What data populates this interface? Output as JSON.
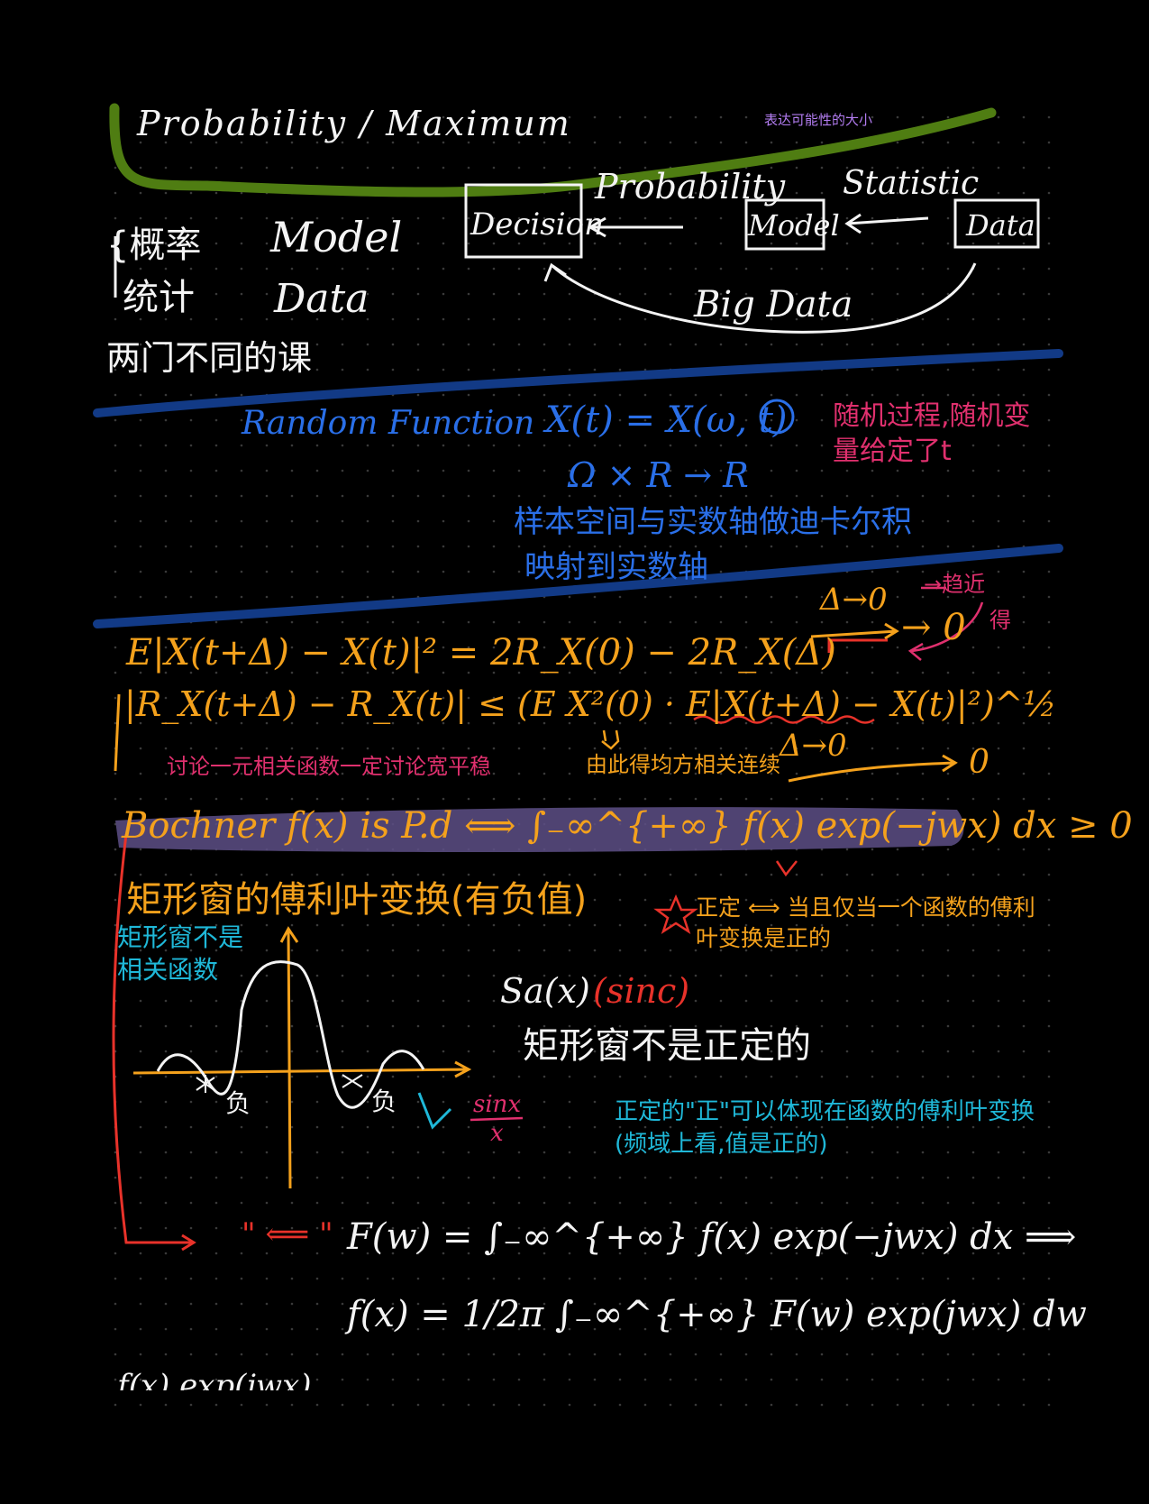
{
  "colors": {
    "background": "#000000",
    "dot_grid": "#3a3a3a",
    "white_ink": "#f4f4f4",
    "green_ink": "#4f7d12",
    "navy_ink": "#123a86",
    "blue_ink": "#2a6fe8",
    "magenta_ink": "#e0306e",
    "orange_ink": "#f4a11c",
    "cyan_ink": "#1fb8d8",
    "red_ink": "#e8322a",
    "violet_ink": "#b27cf0",
    "highlight": "#5d4f86"
  },
  "header": {
    "title_cut": "Probability / Maximum",
    "small_note": "表达可能性的大小"
  },
  "flow_diagram": {
    "left_note_line1": "{概率",
    "left_note_word1": "Model",
    "left_note_line2": "统计",
    "left_note_word2": "Data",
    "left_note_line3": "两门不同的课",
    "box_decision": "Decision",
    "box_model": "Model",
    "box_data": "Data",
    "label_probability": "Probability",
    "label_statistic": "Statistic",
    "label_big_data": "Big Data"
  },
  "random_function": {
    "title": "Random Function",
    "definition": "X(t) = X(ω, t)",
    "mapping": "Ω × R → R",
    "note_magenta": "随机过程,随机变量给定了t",
    "note_blue_1": "样本空间与实数轴做迪卡尔积",
    "note_blue_2": "映射到实数轴"
  },
  "continuity": {
    "eq1": "E|X(t+Δ) − X(t)|² = 2R_X(0) − 2R_X(Δ)",
    "arrow_label": "Δ→0",
    "arrow_result": "→ 0",
    "right_note": "→趋近",
    "right_note_2": "得",
    "eq2": "|R_X(t+Δ) − R_X(t)| ≤ (E X²(0) · E|X(t+Δ) − X(t)|²)^½",
    "note_orange_1": "讨论一元相关函数一定讨论宽平稳",
    "note_orange_2": "由此得均方相关连续",
    "limit": "Δ→0",
    "limit_result": "0"
  },
  "bochner": {
    "statement": "Bochner f(x) is P.d ⟺ ∫₋∞^{+∞} f(x) exp(−jwx) dx ≥ 0"
  },
  "rect_window": {
    "title": "矩形窗的傅利叶变换(有负值)",
    "star_note": "正定 ⟺ 当且仅当一个函数的傅利叶变换是正的",
    "left_note": "矩形窗不是相关函数",
    "sa_label": "Sa(x)",
    "sinc_label": "(sinc)",
    "not_pd_note": "矩形窗不是正定的",
    "neg_label_1": "负",
    "neg_label_2": "负",
    "sinx_num": "sinx",
    "sinx_den": "x",
    "pd_note_1": "正定的\"正\"可以体现在函数的傅利叶变换",
    "pd_note_2": "(频域上看,值是正的)"
  },
  "fourier": {
    "arrow_note": "\" ⟸ \"",
    "eq_forward": "F(w) = ∫₋∞^{+∞} f(x) exp(−jwx) dx ⟹",
    "eq_inverse": "f(x) = 1/2π ∫₋∞^{+∞} F(w) exp(jwx) dw",
    "footer_cut": "f(x)  exp(jwx)"
  }
}
